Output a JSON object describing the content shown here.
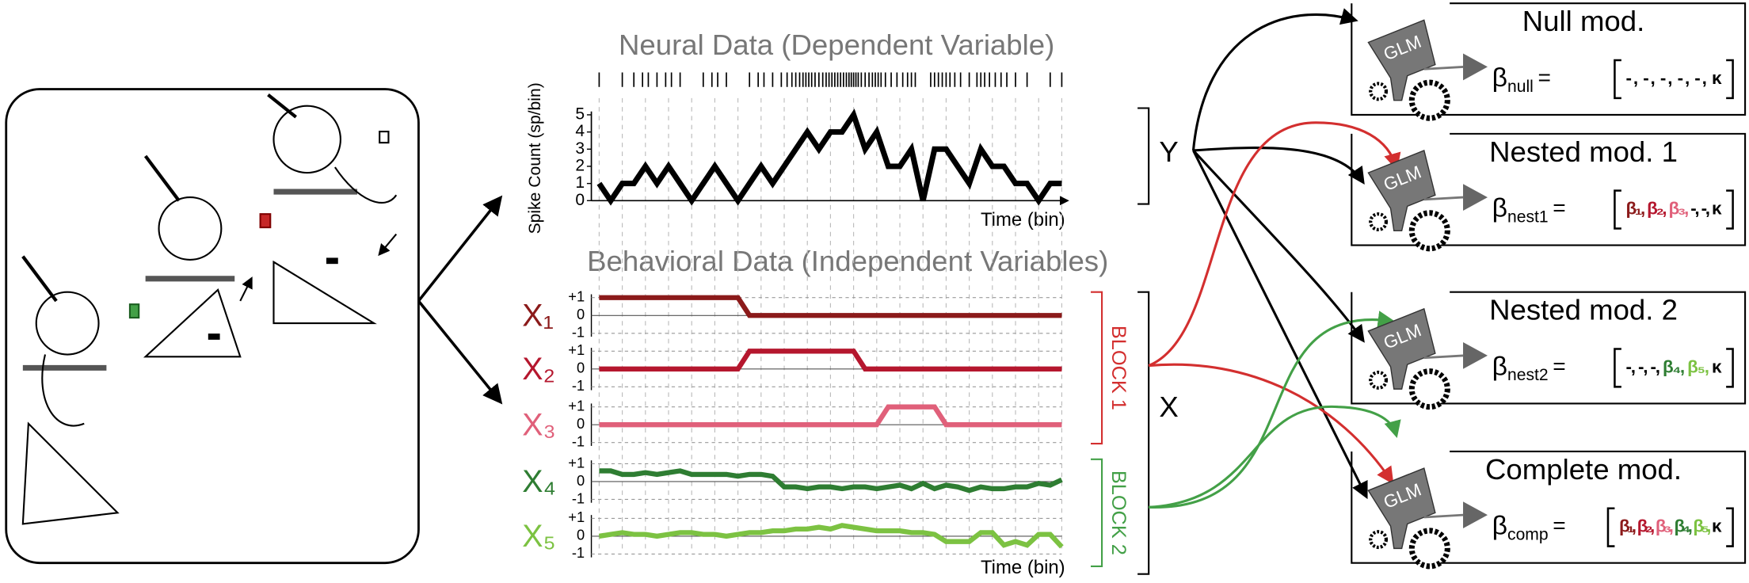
{
  "neural": {
    "title": "Neural Data (Dependent Variable)",
    "chart_data": {
      "type": "line",
      "y_label": "Spike Count (sp/bin)",
      "x_label": "Time (bin)",
      "ylim": [
        0,
        5
      ],
      "yticks": [
        0,
        1,
        2,
        3,
        4,
        5
      ],
      "series": [
        {
          "color": "#000000",
          "values": [
            1,
            0,
            1,
            1,
            2,
            1,
            2,
            1,
            0,
            1,
            2,
            1,
            0,
            1,
            2,
            1,
            2,
            3,
            4,
            3,
            4,
            4,
            5,
            3,
            4,
            2,
            2,
            3,
            0,
            3,
            3,
            2,
            1,
            3,
            2,
            2,
            1,
            1,
            0,
            1,
            1
          ]
        }
      ]
    }
  },
  "behavior": {
    "title": "Behavioral Data (Independent Variables)",
    "chart_data": {
      "type": "line",
      "x_label": "Time (bin)",
      "ylim": [
        -1,
        1
      ],
      "yticks": [
        {
          "value": 1,
          "label": "+1"
        },
        0,
        -1
      ],
      "series": [
        {
          "name": "X₁",
          "color": "#8b1a1a",
          "values": [
            1,
            1,
            1,
            1,
            1,
            1,
            1,
            1,
            1,
            1,
            1,
            1,
            1,
            0,
            0,
            0,
            0,
            0,
            0,
            0,
            0,
            0,
            0,
            0,
            0,
            0,
            0,
            0,
            0,
            0,
            0,
            0,
            0,
            0,
            0,
            0,
            0,
            0,
            0,
            0,
            0
          ]
        },
        {
          "name": "X₂",
          "color": "#b5172e",
          "values": [
            0,
            0,
            0,
            0,
            0,
            0,
            0,
            0,
            0,
            0,
            0,
            0,
            0,
            1,
            1,
            1,
            1,
            1,
            1,
            1,
            1,
            1,
            1,
            0,
            0,
            0,
            0,
            0,
            0,
            0,
            0,
            0,
            0,
            0,
            0,
            0,
            0,
            0,
            0,
            0,
            0
          ]
        },
        {
          "name": "X₃",
          "color": "#e0607a",
          "values": [
            0,
            0,
            0,
            0,
            0,
            0,
            0,
            0,
            0,
            0,
            0,
            0,
            0,
            0,
            0,
            0,
            0,
            0,
            0,
            0,
            0,
            0,
            0,
            0,
            0,
            1,
            1,
            1,
            1,
            1,
            0,
            0,
            0,
            0,
            0,
            0,
            0,
            0,
            0,
            0,
            0
          ]
        },
        {
          "name": "X₄",
          "color": "#2e7d32",
          "values": [
            0.6,
            0.6,
            0.4,
            0.4,
            0.5,
            0.4,
            0.5,
            0.6,
            0.4,
            0.4,
            0.4,
            0.4,
            0.3,
            0.4,
            0.4,
            0.3,
            -0.3,
            -0.3,
            -0.4,
            -0.3,
            -0.3,
            -0.4,
            -0.3,
            -0.3,
            -0.4,
            -0.3,
            -0.2,
            -0.4,
            -0.1,
            -0.4,
            -0.2,
            -0.3,
            -0.5,
            -0.3,
            -0.4,
            -0.4,
            -0.3,
            -0.3,
            -0.1,
            -0.2,
            0.1
          ]
        },
        {
          "name": "X₅",
          "color": "#7cc242",
          "values": [
            0.0,
            0.1,
            0.2,
            0.1,
            0.1,
            0.0,
            0.1,
            0.2,
            0.2,
            0.1,
            0.1,
            0.0,
            0.1,
            0.2,
            0.2,
            0.3,
            0.3,
            0.4,
            0.4,
            0.5,
            0.4,
            0.6,
            0.5,
            0.4,
            0.3,
            0.3,
            0.3,
            0.2,
            0.2,
            0.1,
            -0.3,
            -0.3,
            -0.3,
            0.2,
            0.2,
            -0.5,
            -0.3,
            -0.5,
            0.1,
            0.1,
            -0.6
          ]
        }
      ]
    }
  },
  "blocks": [
    {
      "label": "BLOCK 1",
      "color": "#d32f2f"
    },
    {
      "label": "BLOCK 2",
      "color": "#43a047"
    }
  ],
  "y_label": "Y",
  "x_label": "X",
  "models": [
    {
      "title": "Null mod.",
      "icon": "GLM",
      "beta": "β",
      "sub": "null",
      "eq": "=",
      "terms": [
        {
          "text": "-,",
          "color": "#000000"
        },
        {
          "text": "-,",
          "color": "#000000"
        },
        {
          "text": "-,",
          "color": "#000000"
        },
        {
          "text": "-,",
          "color": "#000000"
        },
        {
          "text": "-,",
          "color": "#000000"
        },
        {
          "text": "κ",
          "color": "#000000"
        }
      ]
    },
    {
      "title": "Nested mod. 1",
      "icon": "GLM",
      "beta": "β",
      "sub": "nest1",
      "eq": "=",
      "terms": [
        {
          "text": "β₁,",
          "color": "#8b1a1a"
        },
        {
          "text": "β₂,",
          "color": "#b5172e"
        },
        {
          "text": "β₃,",
          "color": "#e0607a"
        },
        {
          "text": "-,",
          "color": "#000000"
        },
        {
          "text": "-,",
          "color": "#000000"
        },
        {
          "text": "κ",
          "color": "#000000"
        }
      ]
    },
    {
      "title": "Nested mod. 2",
      "icon": "GLM",
      "beta": "β",
      "sub": "nest2",
      "eq": "=",
      "terms": [
        {
          "text": "-,",
          "color": "#000000"
        },
        {
          "text": "-,",
          "color": "#000000"
        },
        {
          "text": "-,",
          "color": "#000000"
        },
        {
          "text": "β₄,",
          "color": "#2e7d32"
        },
        {
          "text": "β₅,",
          "color": "#7cc242"
        },
        {
          "text": "κ",
          "color": "#000000"
        }
      ]
    },
    {
      "title": "Complete mod.",
      "icon": "GLM",
      "beta": "β",
      "sub": "comp",
      "eq": "=",
      "terms": [
        {
          "text": "β₁,",
          "color": "#8b1a1a"
        },
        {
          "text": "β₂,",
          "color": "#b5172e"
        },
        {
          "text": "β₃,",
          "color": "#e0607a"
        },
        {
          "text": "β₄,",
          "color": "#2e7d32"
        },
        {
          "text": "β₅,",
          "color": "#7cc242"
        },
        {
          "text": "κ",
          "color": "#000000"
        }
      ]
    }
  ]
}
